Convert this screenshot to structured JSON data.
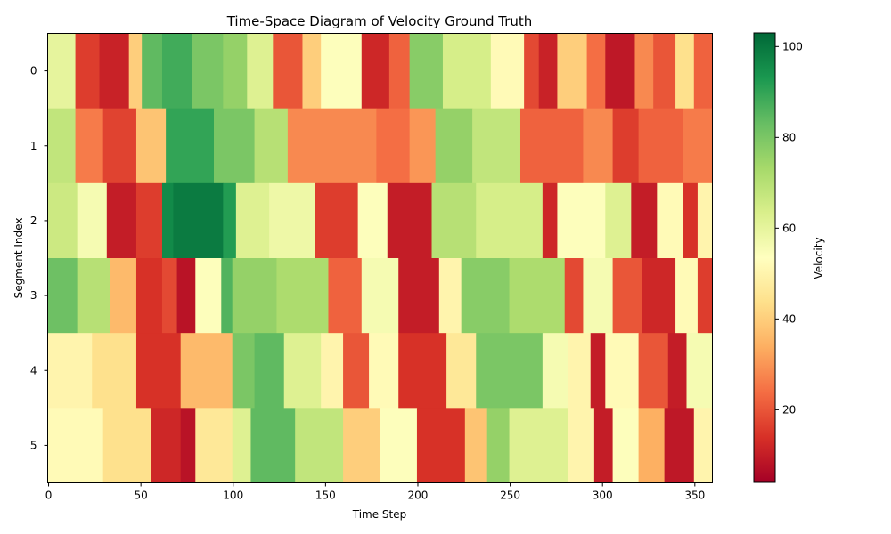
{
  "chart_data": {
    "type": "heatmap",
    "title": "Time-Space Diagram of Velocity Ground Truth",
    "xlabel": "Time Step",
    "ylabel": "Segment Index",
    "colorbar_label": "Velocity",
    "colormap": "RdYlGn",
    "colormap_stops": [
      "#a50026",
      "#d73027",
      "#f46d43",
      "#fdae61",
      "#fee08b",
      "#ffffbf",
      "#d9ef8b",
      "#a6d96a",
      "#66bd63",
      "#1a9850",
      "#006837"
    ],
    "xlim": [
      -0.5,
      359.5
    ],
    "x_ticks": [
      0,
      50,
      100,
      150,
      200,
      250,
      300,
      350
    ],
    "x_tick_labels": [
      "0",
      "50",
      "100",
      "150",
      "200",
      "250",
      "300",
      "350"
    ],
    "segments": [
      0,
      1,
      2,
      3,
      4,
      5
    ],
    "segment_labels": [
      "0",
      "1",
      "2",
      "3",
      "4",
      "5"
    ],
    "num_time_steps": 360,
    "vmin": 4,
    "vmax": 103,
    "colorbar_ticks": [
      20,
      40,
      60,
      80,
      100
    ],
    "colorbar_tick_labels": [
      "20",
      "40",
      "60",
      "80",
      "100"
    ],
    "series": [
      {
        "segment": 0,
        "blocks": [
          [
            0,
            15,
            60
          ],
          [
            15,
            28,
            16
          ],
          [
            28,
            44,
            11
          ],
          [
            44,
            51,
            40
          ],
          [
            51,
            62,
            84
          ],
          [
            62,
            78,
            88
          ],
          [
            78,
            95,
            80
          ],
          [
            95,
            108,
            76
          ],
          [
            108,
            122,
            62
          ],
          [
            122,
            138,
            20
          ],
          [
            138,
            148,
            40
          ],
          [
            148,
            170,
            54
          ],
          [
            170,
            185,
            12
          ],
          [
            185,
            196,
            22
          ],
          [
            196,
            214,
            78
          ],
          [
            214,
            240,
            64
          ],
          [
            240,
            258,
            52
          ],
          [
            258,
            266,
            18
          ],
          [
            266,
            276,
            11
          ],
          [
            276,
            292,
            40
          ],
          [
            292,
            302,
            24
          ],
          [
            302,
            318,
            9
          ],
          [
            318,
            328,
            28
          ],
          [
            328,
            340,
            20
          ],
          [
            340,
            350,
            44
          ],
          [
            350,
            360,
            22
          ]
        ]
      },
      {
        "segment": 1,
        "blocks": [
          [
            0,
            15,
            68
          ],
          [
            15,
            30,
            26
          ],
          [
            30,
            48,
            17
          ],
          [
            48,
            64,
            38
          ],
          [
            64,
            90,
            90
          ],
          [
            90,
            112,
            80
          ],
          [
            112,
            130,
            70
          ],
          [
            130,
            178,
            28
          ],
          [
            178,
            196,
            24
          ],
          [
            196,
            210,
            30
          ],
          [
            210,
            230,
            76
          ],
          [
            230,
            256,
            68
          ],
          [
            256,
            290,
            22
          ],
          [
            290,
            306,
            28
          ],
          [
            306,
            320,
            16
          ],
          [
            320,
            344,
            22
          ],
          [
            344,
            360,
            26
          ]
        ]
      },
      {
        "segment": 2,
        "blocks": [
          [
            0,
            16,
            66
          ],
          [
            16,
            32,
            56
          ],
          [
            32,
            48,
            10
          ],
          [
            48,
            62,
            16
          ],
          [
            62,
            68,
            96
          ],
          [
            68,
            95,
            99
          ],
          [
            95,
            102,
            92
          ],
          [
            102,
            120,
            62
          ],
          [
            120,
            145,
            58
          ],
          [
            145,
            168,
            16
          ],
          [
            168,
            184,
            54
          ],
          [
            184,
            208,
            10
          ],
          [
            208,
            232,
            70
          ],
          [
            232,
            268,
            64
          ],
          [
            268,
            276,
            12
          ],
          [
            276,
            302,
            54
          ],
          [
            302,
            316,
            62
          ],
          [
            316,
            330,
            10
          ],
          [
            330,
            344,
            52
          ],
          [
            344,
            352,
            14
          ],
          [
            352,
            360,
            50
          ]
        ]
      },
      {
        "segment": 3,
        "blocks": [
          [
            0,
            16,
            82
          ],
          [
            16,
            34,
            70
          ],
          [
            34,
            48,
            36
          ],
          [
            48,
            62,
            14
          ],
          [
            62,
            70,
            18
          ],
          [
            70,
            80,
            8
          ],
          [
            80,
            94,
            54
          ],
          [
            94,
            100,
            86
          ],
          [
            100,
            124,
            76
          ],
          [
            124,
            152,
            72
          ],
          [
            152,
            170,
            22
          ],
          [
            170,
            190,
            56
          ],
          [
            190,
            212,
            10
          ],
          [
            212,
            224,
            50
          ],
          [
            224,
            250,
            78
          ],
          [
            250,
            280,
            72
          ],
          [
            280,
            290,
            18
          ],
          [
            290,
            306,
            56
          ],
          [
            306,
            322,
            20
          ],
          [
            322,
            340,
            12
          ],
          [
            340,
            352,
            52
          ],
          [
            352,
            360,
            16
          ]
        ]
      },
      {
        "segment": 4,
        "blocks": [
          [
            0,
            24,
            50
          ],
          [
            24,
            48,
            44
          ],
          [
            48,
            72,
            14
          ],
          [
            72,
            100,
            36
          ],
          [
            100,
            112,
            80
          ],
          [
            112,
            128,
            84
          ],
          [
            128,
            148,
            62
          ],
          [
            148,
            160,
            50
          ],
          [
            160,
            174,
            20
          ],
          [
            174,
            190,
            52
          ],
          [
            190,
            216,
            14
          ],
          [
            216,
            232,
            46
          ],
          [
            232,
            268,
            80
          ],
          [
            268,
            282,
            56
          ],
          [
            282,
            294,
            50
          ],
          [
            294,
            302,
            10
          ],
          [
            302,
            320,
            52
          ],
          [
            320,
            336,
            20
          ],
          [
            336,
            346,
            10
          ],
          [
            346,
            360,
            56
          ]
        ]
      },
      {
        "segment": 5,
        "blocks": [
          [
            0,
            30,
            52
          ],
          [
            30,
            56,
            44
          ],
          [
            56,
            72,
            12
          ],
          [
            72,
            80,
            8
          ],
          [
            80,
            100,
            46
          ],
          [
            100,
            110,
            62
          ],
          [
            110,
            134,
            84
          ],
          [
            134,
            160,
            68
          ],
          [
            160,
            180,
            40
          ],
          [
            180,
            200,
            54
          ],
          [
            200,
            226,
            14
          ],
          [
            226,
            238,
            38
          ],
          [
            238,
            250,
            76
          ],
          [
            250,
            282,
            62
          ],
          [
            282,
            296,
            50
          ],
          [
            296,
            306,
            10
          ],
          [
            306,
            320,
            54
          ],
          [
            320,
            334,
            34
          ],
          [
            334,
            350,
            9
          ],
          [
            350,
            360,
            50
          ]
        ]
      }
    ]
  }
}
